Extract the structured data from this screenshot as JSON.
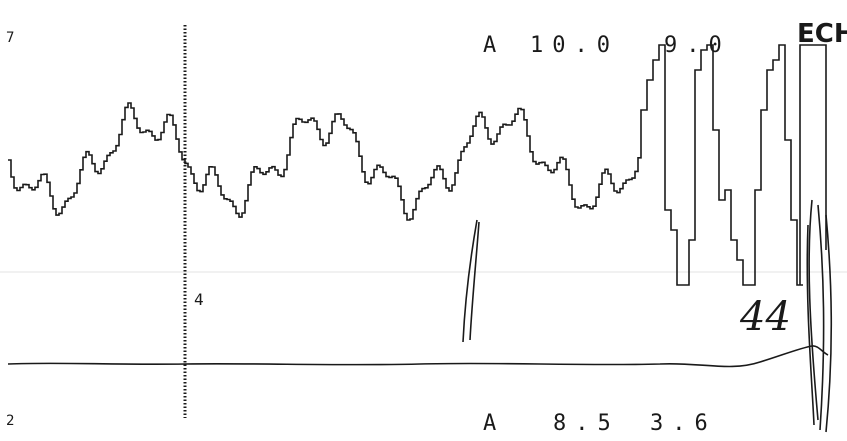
{
  "colors": {
    "paper": "#ffffff",
    "ink": "#1a1a1a",
    "fold_line": "#e3e3e3"
  },
  "header": {
    "top_left_label": "7",
    "top_readout_prefix": "A",
    "top_readout_value_1": "10.0",
    "top_readout_value_2": "9.0",
    "brand_fragment": "ECH"
  },
  "annotations": {
    "marker_label": "4",
    "handwritten_note": "44"
  },
  "footer": {
    "bottom_left_label": "2",
    "bottom_readout_prefix": "A",
    "bottom_readout_value_1": "8.5",
    "bottom_readout_value_2": "3.6"
  }
}
